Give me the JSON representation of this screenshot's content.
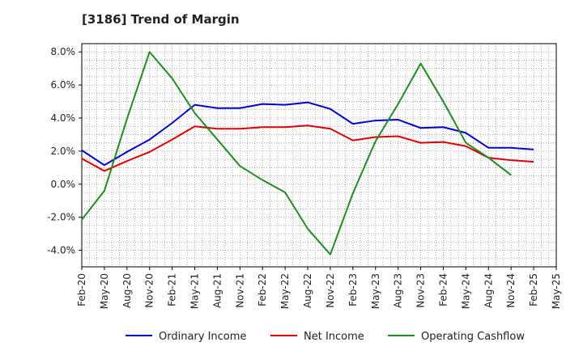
{
  "chart_data": {
    "type": "line",
    "title": "[3186]  Trend of Margin",
    "xlabel": "",
    "ylabel": "",
    "categories": [
      "Feb-20",
      "May-20",
      "Aug-20",
      "Nov-20",
      "Feb-21",
      "May-21",
      "Aug-21",
      "Nov-21",
      "Feb-22",
      "May-22",
      "Aug-22",
      "Nov-22",
      "Feb-23",
      "May-23",
      "Aug-23",
      "Nov-23",
      "Feb-24",
      "May-24",
      "Aug-24",
      "Nov-24",
      "Feb-25",
      "May-25"
    ],
    "ylim": [
      -5.0,
      8.5
    ],
    "yticks": [
      -4.0,
      -2.0,
      0.0,
      2.0,
      4.0,
      6.0,
      8.0
    ],
    "ytick_labels": [
      "-4.0%",
      "-2.0%",
      "0.0%",
      "2.0%",
      "4.0%",
      "6.0%",
      "8.0%"
    ],
    "grid": true,
    "legend_position": "bottom",
    "series": [
      {
        "name": "Ordinary Income",
        "color": "#0000cc",
        "values": [
          2.05,
          1.15,
          1.95,
          2.7,
          3.7,
          4.8,
          4.6,
          4.6,
          4.85,
          4.8,
          4.95,
          4.55,
          3.65,
          3.85,
          3.9,
          3.4,
          3.45,
          3.1,
          2.2,
          2.2,
          2.1,
          null
        ]
      },
      {
        "name": "Net Income",
        "color": "#dd0000",
        "values": [
          1.55,
          0.8,
          1.4,
          1.95,
          2.7,
          3.5,
          3.35,
          3.35,
          3.45,
          3.45,
          3.55,
          3.35,
          2.65,
          2.85,
          2.9,
          2.5,
          2.55,
          2.3,
          1.6,
          1.45,
          1.35,
          null
        ]
      },
      {
        "name": "Operating Cashflow",
        "color": "#228b22",
        "values": [
          -2.15,
          -0.4,
          3.95,
          8.0,
          6.4,
          4.3,
          2.7,
          1.1,
          0.25,
          -0.5,
          -2.7,
          -4.25,
          -0.55,
          2.6,
          4.85,
          7.3,
          5.0,
          2.5,
          1.6,
          0.55,
          null,
          null
        ]
      }
    ]
  }
}
